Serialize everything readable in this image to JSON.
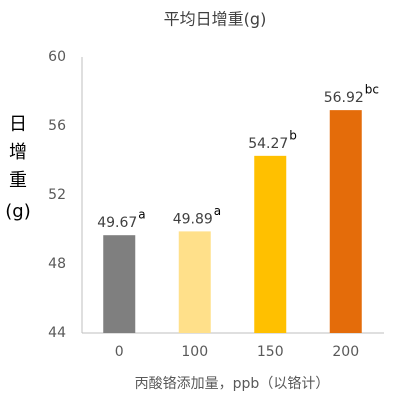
{
  "chart_data": {
    "type": "bar",
    "title": "平均日增重(g)",
    "ylabel_lines": [
      "日",
      "增",
      "重",
      "(g)"
    ],
    "xlabel": "丙酸铬添加量，ppb（以铬计）",
    "categories": [
      "0",
      "100",
      "150",
      "200"
    ],
    "values": [
      49.67,
      49.89,
      54.27,
      56.92
    ],
    "significance": [
      "a",
      "a",
      "b",
      "bc"
    ],
    "colors": [
      "#7f7f7f",
      "#ffe08a",
      "#ffc000",
      "#e46c0a"
    ],
    "ylim": [
      44,
      60
    ],
    "yticks": [
      44,
      48,
      52,
      56,
      60
    ],
    "grid": false
  }
}
